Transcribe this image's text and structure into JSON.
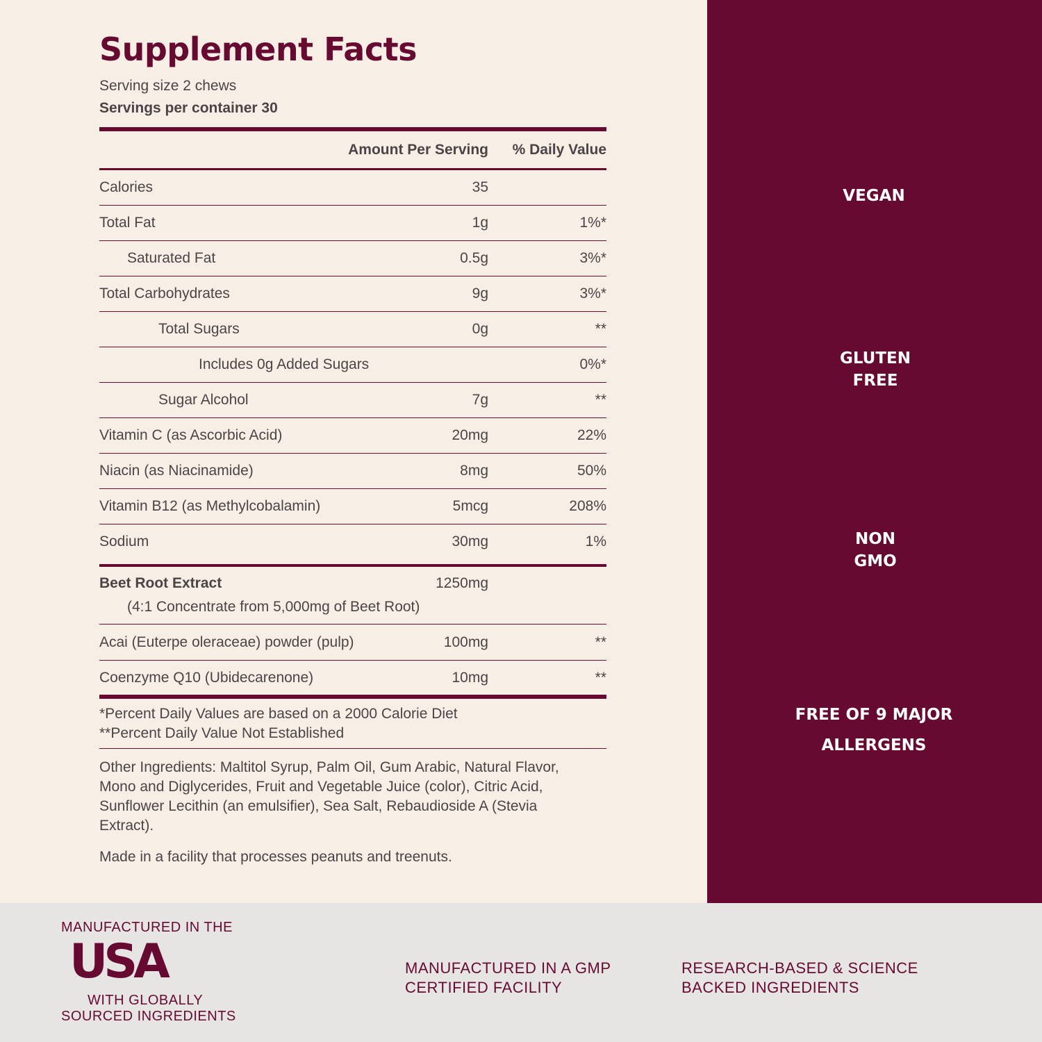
{
  "facts": {
    "title": "Supplement Facts",
    "serving_size": "Serving size 2 chews",
    "servings": "Servings per container 30",
    "header": {
      "amount": "Amount Per Serving",
      "dv": "% Daily Value"
    },
    "rows": [
      {
        "name": "Calories",
        "amount": "35"
      },
      {
        "name": "Total Fat",
        "amount": "1g",
        "dv": "1%*"
      },
      {
        "name": "Saturated Fat",
        "amount": "0.5g",
        "dv": "3%*"
      },
      {
        "name": "Total Carbohydrates",
        "amount": "9g",
        "dv": "3%*"
      },
      {
        "name": "Total Sugars",
        "amount": "0g",
        "dv": "**"
      },
      {
        "name": "Includes 0g Added Sugars",
        "dv": "0%*"
      },
      {
        "name": "Sugar Alcohol",
        "amount": "7g",
        "dv": "**"
      },
      {
        "name": "Vitamin C (as Ascorbic Acid)",
        "amount": "20mg",
        "dv": "22%"
      },
      {
        "name": "Niacin (as Niacinamide)",
        "amount": "8mg",
        "dv": "50%"
      },
      {
        "name": "Vitamin B12 (as Methylcobalamin)",
        "amount": "5mcg",
        "dv": "208%"
      },
      {
        "name": "Sodium",
        "amount": "30mg",
        "dv": "1%"
      }
    ],
    "beet": {
      "name": "Beet Root Extract",
      "amount": "1250mg",
      "note": "(4:1 Concentrate from 5,000mg of Beet Root)"
    },
    "extra_rows": [
      {
        "name": "Acai (Euterpe oleraceae) powder (pulp)",
        "amount": "100mg",
        "dv": "**"
      },
      {
        "name": "Coenzyme Q10 (Ubidecarenone)",
        "amount": "10mg",
        "dv": "**"
      }
    ],
    "footnotes": [
      "*Percent Daily Values are based on a 2000 Calorie Diet",
      "**Percent Daily Value Not Established"
    ],
    "other_ingredients": [
      "Other Ingredients: Maltitol Syrup, Palm Oil, Gum Arabic, Natural Flavor,",
      "Mono and Diglycerides, Fruit and Vegetable Juice (color), Citric Acid,",
      "Sunflower Lecithin (an emulsifier), Sea Salt, Rebaudioside A (Stevia",
      "Extract)."
    ],
    "facility": "Made in a facility that processes peanuts and treenuts."
  },
  "badges": [
    {
      "lines": [
        "VEGAN"
      ]
    },
    {
      "lines": [
        "GLUTEN",
        "FREE"
      ]
    },
    {
      "lines": [
        "NON",
        "GMO"
      ]
    },
    {
      "lines": [
        "FREE OF 9 MAJOR",
        "ALLERGENS"
      ]
    }
  ],
  "footer": {
    "usa_top": "MANUFACTURED IN THE",
    "usa": "USA",
    "usa_bottom": [
      "WITH GLOBALLY",
      "SOURCED INGREDIENTS"
    ],
    "claims": [
      [
        "MANUFACTURED IN A GMP",
        "CERTIFIED FACILITY"
      ],
      [
        "RESEARCH-BASED & SCIENCE",
        "BACKED INGREDIENTS"
      ]
    ]
  }
}
